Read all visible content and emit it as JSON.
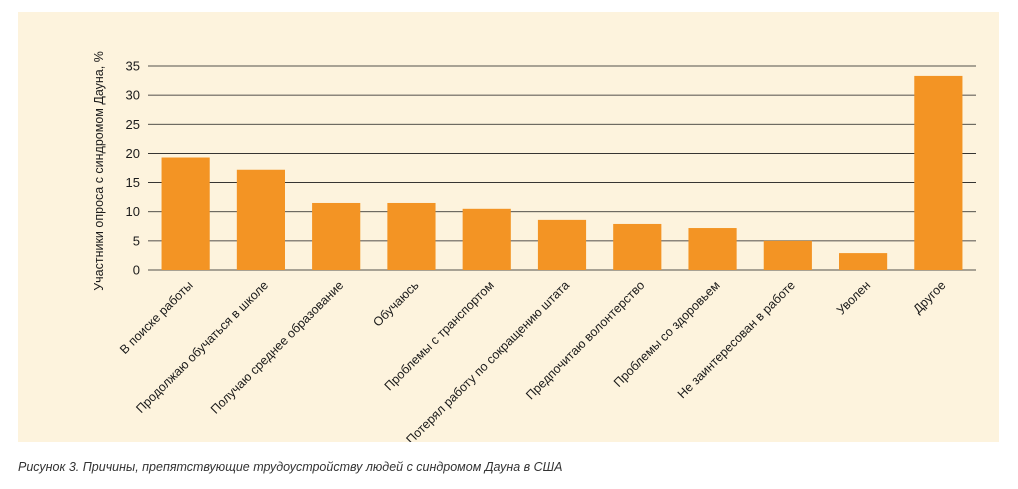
{
  "caption": "Рисунок 3. Причины, препятствующие трудоустройству людей с синдромом Дауна в США",
  "colors": {
    "panel_background": "#fdf3dd",
    "bar": "#f39424",
    "gridline": "#1a1a1a"
  },
  "chart_data": {
    "type": "bar",
    "title": "",
    "xlabel": "",
    "ylabel": "Участники опроса с синдромом Дауна, %",
    "ylim": [
      0,
      35
    ],
    "yticks": [
      0,
      5,
      10,
      15,
      20,
      25,
      30,
      35
    ],
    "grid": true,
    "categories": [
      "В поиске работы",
      "Продолжаю обучаться в школе",
      "Получаю среднее образование",
      "Обучаюсь",
      "Проблемы с транспортом",
      "Потерял работу по сокращению штата",
      "Предпочитаю волонтерство",
      "Проблемы со здоровьем",
      "Не заинтересован в работе",
      "Уволен",
      "Другое"
    ],
    "values": [
      19.3,
      17.2,
      11.5,
      11.5,
      10.5,
      8.6,
      7.9,
      7.2,
      5.0,
      2.9,
      33.3
    ]
  }
}
